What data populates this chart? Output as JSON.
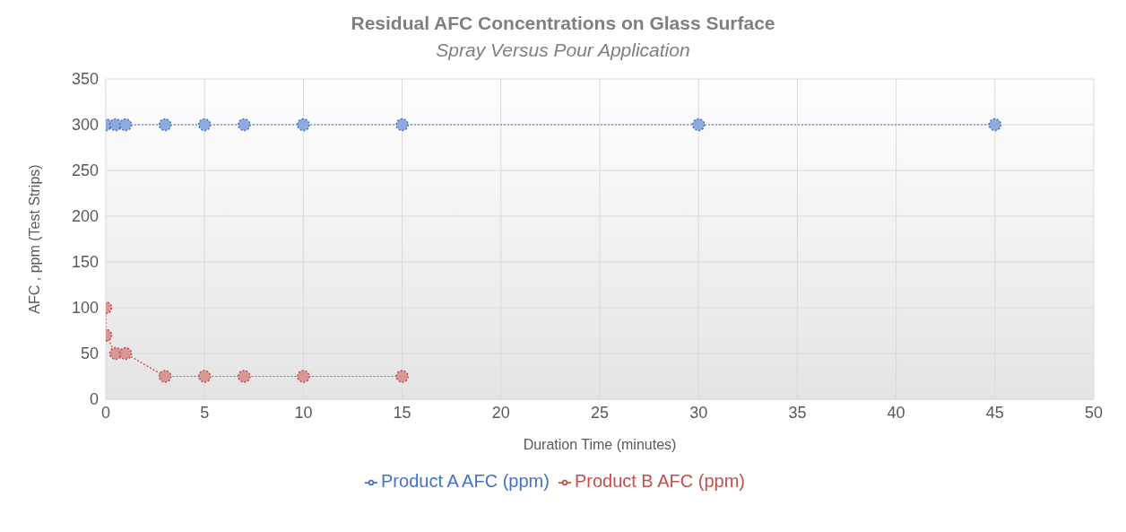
{
  "chart_data": {
    "type": "line",
    "title": "Residual AFC Concentrations on Glass Surface",
    "subtitle": "Spray Versus Pour Application",
    "xlabel": "Duration Time (minutes)",
    "ylabel": "AFC , ppm (Test Strips)",
    "series": [
      {
        "name": "Product A AFC (ppm)",
        "color": "#4472c4",
        "x": [
          0,
          0.5,
          1,
          3,
          5,
          7,
          10,
          15,
          30,
          45
        ],
        "values": [
          300,
          300,
          300,
          300,
          300,
          300,
          300,
          300,
          300,
          300
        ]
      },
      {
        "name": "Product B AFC (ppm)",
        "color": "#c0504d",
        "x": [
          0,
          0,
          0.5,
          1,
          3,
          5,
          7,
          10,
          15
        ],
        "values": [
          100,
          70,
          50,
          50,
          25,
          25,
          25,
          25,
          25
        ]
      }
    ],
    "xlim": [
      0,
      50
    ],
    "xticks": [
      0,
      5,
      10,
      15,
      20,
      25,
      30,
      35,
      40,
      45,
      50
    ],
    "ylim": [
      0,
      350
    ],
    "yticks": [
      0,
      50,
      100,
      150,
      200,
      250,
      300,
      350
    ],
    "grid": true,
    "legend": "bottom",
    "marker": "circle",
    "line_style": "dotted"
  }
}
